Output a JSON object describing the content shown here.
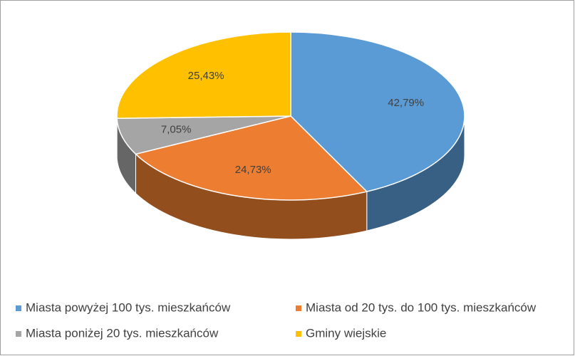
{
  "chart_data": {
    "type": "pie",
    "three_d": true,
    "categories": [
      "Miasta powyżej 100 tys. mieszkańców",
      "Miasta od 20 tys. do 100 tys. mieszkańców",
      "Miasta poniżej 20 tys. mieszkańców",
      "Gminy wiejskie"
    ],
    "values": [
      42.79,
      24.73,
      7.05,
      25.43
    ],
    "value_labels": [
      "42,79%",
      "24,73%",
      "7,05%",
      "25,43%"
    ],
    "colors": [
      "#5b9bd5",
      "#ed7d31",
      "#a5a5a5",
      "#ffc000"
    ],
    "legend": "bottom"
  }
}
